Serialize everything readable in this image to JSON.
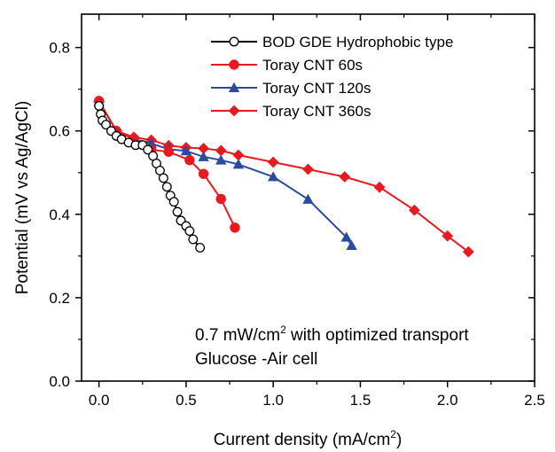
{
  "chart_data": {
    "type": "line",
    "xlabel": "Current density (mA/cm",
    "xlabel_sup": "2",
    "xlabel_end": ")",
    "ylabel": "Potential (mV vs Ag/AgCl)",
    "xlim": [
      -0.1,
      2.5
    ],
    "ylim": [
      0.0,
      0.88
    ],
    "x_ticks": [
      0.0,
      0.5,
      1.0,
      1.5,
      2.0,
      2.5
    ],
    "x_tick_labels": [
      "0.0",
      "0.5",
      "1.0",
      "1.5",
      "2.0",
      "2.5"
    ],
    "y_ticks": [
      0.0,
      0.2,
      0.4,
      0.6,
      0.8
    ],
    "y_tick_labels": [
      "0.0",
      "0.2",
      "0.4",
      "0.6",
      "0.8"
    ],
    "grid": false,
    "legend_position": "top-right",
    "annotations": [
      {
        "main": "0.7 mW/cm",
        "sup": "2",
        "rest": " with optimized transport"
      },
      {
        "main": "Glucose -Air cell",
        "sup": "",
        "rest": ""
      }
    ],
    "series": [
      {
        "name": "BOD GDE Hydrophobic type",
        "color": "#000000",
        "marker": "open-circle",
        "points": [
          [
            0.0,
            0.66
          ],
          [
            0.01,
            0.64
          ],
          [
            0.02,
            0.625
          ],
          [
            0.04,
            0.615
          ],
          [
            0.07,
            0.6
          ],
          [
            0.1,
            0.588
          ],
          [
            0.13,
            0.58
          ],
          [
            0.17,
            0.572
          ],
          [
            0.21,
            0.566
          ],
          [
            0.25,
            0.566
          ],
          [
            0.28,
            0.555
          ],
          [
            0.31,
            0.54
          ],
          [
            0.33,
            0.522
          ],
          [
            0.35,
            0.505
          ],
          [
            0.37,
            0.487
          ],
          [
            0.39,
            0.466
          ],
          [
            0.41,
            0.445
          ],
          [
            0.43,
            0.43
          ],
          [
            0.45,
            0.406
          ],
          [
            0.47,
            0.385
          ],
          [
            0.5,
            0.372
          ],
          [
            0.52,
            0.36
          ],
          [
            0.54,
            0.34
          ],
          [
            0.58,
            0.32
          ]
        ]
      },
      {
        "name": "Toray CNT 60s",
        "color": "#e8191f",
        "marker": "filled-circle",
        "points": [
          [
            0.0,
            0.672
          ],
          [
            0.1,
            0.6
          ],
          [
            0.2,
            0.58
          ],
          [
            0.3,
            0.555
          ],
          [
            0.4,
            0.55
          ],
          [
            0.52,
            0.53
          ],
          [
            0.6,
            0.497
          ],
          [
            0.7,
            0.437
          ],
          [
            0.78,
            0.368
          ]
        ]
      },
      {
        "name": "Toray CNT 120s",
        "color": "#2c4a9e",
        "marker": "filled-triangle",
        "points": [
          [
            0.0,
            0.67
          ],
          [
            0.1,
            0.6
          ],
          [
            0.2,
            0.58
          ],
          [
            0.3,
            0.57
          ],
          [
            0.4,
            0.556
          ],
          [
            0.5,
            0.552
          ],
          [
            0.6,
            0.538
          ],
          [
            0.7,
            0.53
          ],
          [
            0.8,
            0.52
          ],
          [
            1.0,
            0.49
          ],
          [
            1.2,
            0.436
          ],
          [
            1.42,
            0.345
          ],
          [
            1.45,
            0.325
          ]
        ]
      },
      {
        "name": "Toray CNT 360s",
        "color": "#e8191f",
        "marker": "filled-diamond",
        "points": [
          [
            0.0,
            0.67
          ],
          [
            0.1,
            0.6
          ],
          [
            0.2,
            0.585
          ],
          [
            0.3,
            0.578
          ],
          [
            0.4,
            0.565
          ],
          [
            0.5,
            0.56
          ],
          [
            0.6,
            0.558
          ],
          [
            0.7,
            0.553
          ],
          [
            0.8,
            0.542
          ],
          [
            1.0,
            0.525
          ],
          [
            1.2,
            0.508
          ],
          [
            1.41,
            0.49
          ],
          [
            1.61,
            0.465
          ],
          [
            1.81,
            0.41
          ],
          [
            2.0,
            0.348
          ],
          [
            2.12,
            0.31
          ]
        ]
      }
    ]
  }
}
